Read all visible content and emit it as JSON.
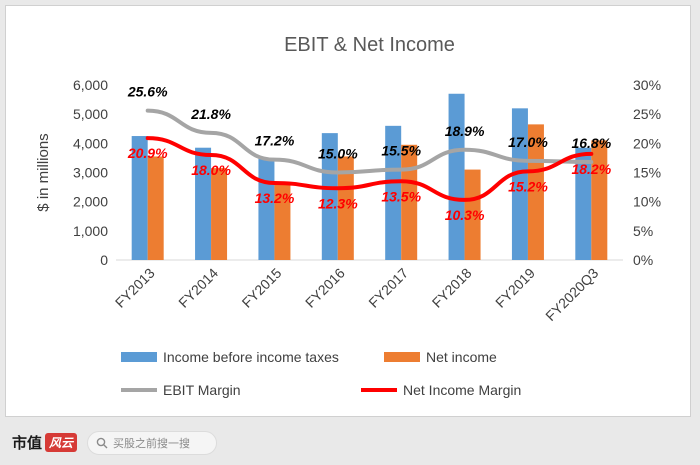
{
  "footer": {
    "brand_text": "市值",
    "brand_mark": "风云",
    "search_placeholder": "买股之前搜一搜"
  },
  "chart_data": {
    "type": "bar+line",
    "title": "EBIT & Net Income",
    "ylabel": "$ in millions",
    "ylim": [
      0,
      6000
    ],
    "y_ticks": [
      "0",
      "1,000",
      "2,000",
      "3,000",
      "4,000",
      "5,000",
      "6,000"
    ],
    "y2lim": [
      0,
      30
    ],
    "y2_ticks": [
      "0%",
      "5%",
      "10%",
      "15%",
      "20%",
      "25%",
      "30%"
    ],
    "categories": [
      "FY2013",
      "FY2014",
      "FY2015",
      "FY2016",
      "FY2017",
      "FY2018",
      "FY2019",
      "FY2020Q3"
    ],
    "bar_series": [
      {
        "name": "Income before income taxes",
        "color": "#5b9bd5",
        "values": [
          4250,
          3850,
          3500,
          4350,
          4600,
          5700,
          5200,
          3850
        ]
      },
      {
        "name": "Net income",
        "color": "#ed7d31",
        "values": [
          3550,
          3150,
          2650,
          3550,
          3950,
          3100,
          4650,
          4100
        ]
      }
    ],
    "line_series": [
      {
        "name": "EBIT Margin",
        "color": "#a5a5a5",
        "values": [
          25.6,
          21.8,
          17.2,
          15.0,
          15.5,
          18.9,
          17.0,
          16.8
        ],
        "labels": [
          "25.6%",
          "21.8%",
          "17.2%",
          "15.0%",
          "15.5%",
          "18.9%",
          "17.0%",
          "16.8%"
        ],
        "label_color": "#000000"
      },
      {
        "name": "Net Income Margin",
        "color": "#ff0000",
        "values": [
          20.9,
          18.0,
          13.2,
          12.3,
          13.5,
          10.3,
          15.2,
          18.2
        ],
        "labels": [
          "20.9%",
          "18.0%",
          "13.2%",
          "12.3%",
          "13.5%",
          "10.3%",
          "15.2%",
          "18.2%"
        ],
        "label_color": "#ff0000"
      }
    ],
    "grid": false,
    "legend_placement": "bottom"
  }
}
